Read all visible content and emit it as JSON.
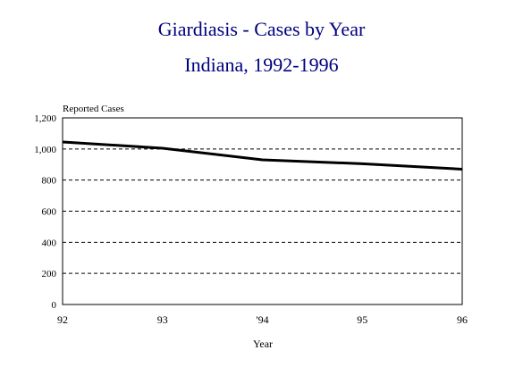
{
  "chart_data": {
    "type": "line",
    "title": "Giardiasis - Cases by Year",
    "subtitle": "Indiana, 1992-1996",
    "ylabel": "Reported Cases",
    "xlabel": "Year",
    "categories": [
      "92",
      "93",
      "'94",
      "95",
      "96"
    ],
    "values": [
      1045,
      1005,
      930,
      905,
      870
    ],
    "ylim": [
      0,
      1200
    ],
    "yticks": [
      0,
      200,
      400,
      600,
      800,
      1000,
      1200
    ],
    "ytick_labels": [
      "0",
      "200",
      "400",
      "600",
      "800",
      "1,000",
      "1,200"
    ],
    "grid": "horizontal-dashed",
    "line_color": "#000000",
    "title_color": "#000080"
  }
}
